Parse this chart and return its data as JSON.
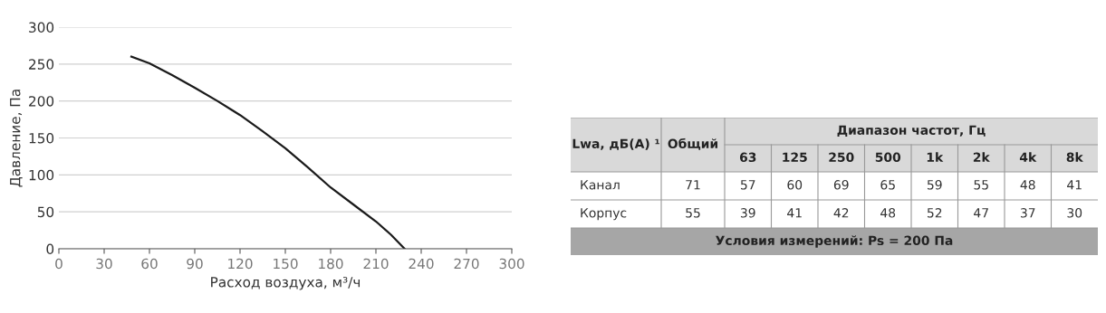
{
  "chart_data": [
    {
      "type": "line",
      "xlabel": "Расход воздуха, м³/ч",
      "ylabel": "Давление, Па",
      "x": [
        48,
        60,
        75,
        90,
        105,
        120,
        135,
        150,
        165,
        180,
        195,
        210,
        220,
        229
      ],
      "series": [
        {
          "color": "#1a1a1a",
          "values": [
            260,
            251,
            235,
            218,
            200,
            181,
            159,
            136,
            110,
            83,
            60,
            37,
            19,
            0
          ]
        }
      ],
      "xlim": [
        0,
        300
      ],
      "ylim": [
        0,
        300
      ],
      "xticks": [
        0,
        30,
        60,
        90,
        120,
        150,
        180,
        210,
        240,
        270,
        300
      ],
      "yticks": [
        0,
        50,
        100,
        150,
        200,
        250,
        300
      ],
      "grid": "y",
      "marker": "none",
      "line_style": "solid"
    },
    {
      "type": "other",
      "title": "Диапазон частот, Гц",
      "ylabel": "Lwa, дБ(А) ¹",
      "categories": [
        "Общий",
        "63",
        "125",
        "250",
        "500",
        "1k",
        "2k",
        "4k",
        "8k"
      ],
      "y_categories": [
        "Канал",
        "Корпус"
      ],
      "cell_labels": [
        [
          "71",
          "57",
          "60",
          "69",
          "65",
          "59",
          "55",
          "48",
          "41"
        ],
        [
          "55",
          "39",
          "41",
          "42",
          "48",
          "52",
          "47",
          "37",
          "30"
        ]
      ],
      "annotations": [
        "Условия измерений: Ps = 200 Па"
      ]
    }
  ]
}
